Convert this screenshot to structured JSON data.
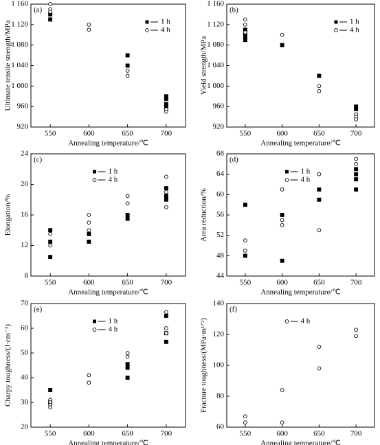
{
  "chart_data": [
    {
      "type": "scatter",
      "panel_label": "(a)",
      "x_label": "Annealing temperature/℃",
      "y_label": "Ultimate tensile strength/MPa",
      "xlim": [
        525,
        725
      ],
      "xticks": [
        550,
        600,
        650,
        700
      ],
      "ylim": [
        920,
        1160
      ],
      "yticks": [
        920,
        960,
        {
          "value": 1000,
          "label": "1 000"
        },
        {
          "value": 1040,
          "label": "1 040"
        },
        {
          "value": 1080,
          "label": "1 080"
        },
        {
          "value": 1120,
          "label": "1 120"
        },
        {
          "value": 1160,
          "label": "1 160"
        }
      ],
      "legend_loc": "upper right",
      "series": [
        {
          "name": "1 h",
          "color": "#000000",
          "marker": "square",
          "x": [
            550,
            550,
            650,
            650,
            700,
            700,
            700,
            700
          ],
          "values": [
            1130,
            1140,
            1060,
            1040,
            980,
            975,
            965,
            960
          ]
        },
        {
          "name": "4 h",
          "color": "#000000",
          "marker": "circle",
          "x": [
            550,
            550,
            550,
            600,
            600,
            650,
            650,
            700,
            700
          ],
          "values": [
            1160,
            1150,
            1145,
            1120,
            1110,
            1030,
            1020,
            955,
            950
          ]
        }
      ]
    },
    {
      "type": "scatter",
      "panel_label": "(b)",
      "x_label": "Annealing temperature/℃",
      "y_label": "Yield strength/MPa",
      "xlim": [
        525,
        725
      ],
      "xticks": [
        550,
        600,
        650,
        700
      ],
      "ylim": [
        920,
        1160
      ],
      "yticks": [
        920,
        960,
        {
          "value": 1000,
          "label": "1 000"
        },
        {
          "value": 1040,
          "label": "1 040"
        },
        {
          "value": 1080,
          "label": "1 080"
        },
        {
          "value": 1120,
          "label": "1 120"
        },
        {
          "value": 1160,
          "label": "1 160"
        }
      ],
      "legend_loc": "upper right",
      "series": [
        {
          "name": "1 h",
          "color": "#000000",
          "marker": "square",
          "x": [
            550,
            550,
            550,
            550,
            600,
            650,
            700,
            700
          ],
          "values": [
            1110,
            1100,
            1095,
            1090,
            1080,
            1020,
            960,
            955
          ]
        },
        {
          "name": "4 h",
          "color": "#000000",
          "marker": "circle",
          "x": [
            550,
            550,
            550,
            600,
            650,
            650,
            700,
            700,
            700
          ],
          "values": [
            1130,
            1120,
            1105,
            1100,
            1000,
            990,
            945,
            940,
            935
          ]
        }
      ]
    },
    {
      "type": "scatter",
      "panel_label": "(c)",
      "x_label": "Annealing temperature/℃",
      "y_label": "Elongation/%",
      "xlim": [
        525,
        725
      ],
      "xticks": [
        550,
        600,
        650,
        700
      ],
      "ylim": [
        8,
        24
      ],
      "yticks": [
        8,
        12,
        16,
        20,
        24
      ],
      "legend_loc": "upper center",
      "series": [
        {
          "name": "1 h",
          "color": "#000000",
          "marker": "square",
          "x": [
            550,
            550,
            550,
            600,
            600,
            650,
            650,
            700,
            700,
            700
          ],
          "values": [
            14,
            12.5,
            10.5,
            13.5,
            12.5,
            16,
            15.5,
            19.5,
            18.5,
            18
          ]
        },
        {
          "name": "4 h",
          "color": "#000000",
          "marker": "circle",
          "x": [
            550,
            550,
            600,
            600,
            600,
            650,
            650,
            700,
            700,
            700
          ],
          "values": [
            13.5,
            12,
            16,
            15,
            14,
            18.5,
            17.5,
            21,
            19,
            17
          ]
        }
      ]
    },
    {
      "type": "scatter",
      "panel_label": "(d)",
      "x_label": "Annealing temperature/℃",
      "y_label": "Area reduction/%",
      "xlim": [
        525,
        725
      ],
      "xticks": [
        550,
        600,
        650,
        700
      ],
      "ylim": [
        44,
        68
      ],
      "yticks": [
        44,
        48,
        52,
        56,
        60,
        64,
        68
      ],
      "legend_loc": "upper center",
      "series": [
        {
          "name": "1 h",
          "color": "#000000",
          "marker": "square",
          "x": [
            550,
            550,
            600,
            600,
            650,
            650,
            700,
            700,
            700,
            700
          ],
          "values": [
            58,
            48,
            56,
            47,
            61,
            59,
            65,
            64,
            63,
            61
          ]
        },
        {
          "name": "4 h",
          "color": "#000000",
          "marker": "circle",
          "x": [
            550,
            550,
            600,
            600,
            600,
            650,
            650,
            700,
            700
          ],
          "values": [
            51,
            49,
            61,
            55,
            54,
            64,
            53,
            67,
            66
          ]
        }
      ]
    },
    {
      "type": "scatter",
      "panel_label": "(e)",
      "x_label": "Annealing temperature/℃",
      "y_label": "Charpy toughness/(J·cm⁻²)",
      "xlim": [
        525,
        725
      ],
      "xticks": [
        550,
        600,
        650,
        700
      ],
      "ylim": [
        20,
        70
      ],
      "yticks": [
        20,
        30,
        40,
        50,
        60,
        70
      ],
      "legend_loc": "upper center",
      "series": [
        {
          "name": "1 h",
          "color": "#000000",
          "marker": "square",
          "x": [
            550,
            550,
            650,
            650,
            650,
            700,
            700,
            700
          ],
          "values": [
            35,
            30,
            45.5,
            44,
            40,
            65,
            58,
            54.5
          ]
        },
        {
          "name": "4 h",
          "color": "#000000",
          "marker": "circle",
          "x": [
            550,
            550,
            550,
            550,
            600,
            600,
            650,
            650,
            700,
            700,
            700
          ],
          "values": [
            31,
            30,
            29,
            28,
            41,
            38,
            50,
            48.5,
            66.5,
            60,
            58
          ]
        }
      ]
    },
    {
      "type": "scatter",
      "panel_label": "(f)",
      "x_label": "Annealing temperature/℃",
      "y_label": "Fracture toughness/(MPa·m¹ᐟ²)",
      "xlim": [
        525,
        725
      ],
      "xticks": [
        550,
        600,
        650,
        700
      ],
      "ylim": [
        60,
        140
      ],
      "yticks": [
        60,
        80,
        100,
        120,
        140
      ],
      "legend_loc": "upper center",
      "series": [
        {
          "name": "4 h",
          "color": "#000000",
          "marker": "circle",
          "x": [
            550,
            550,
            600,
            600,
            650,
            650,
            700,
            700
          ],
          "values": [
            67,
            63,
            84,
            63,
            112,
            98,
            123,
            119
          ]
        }
      ]
    }
  ]
}
